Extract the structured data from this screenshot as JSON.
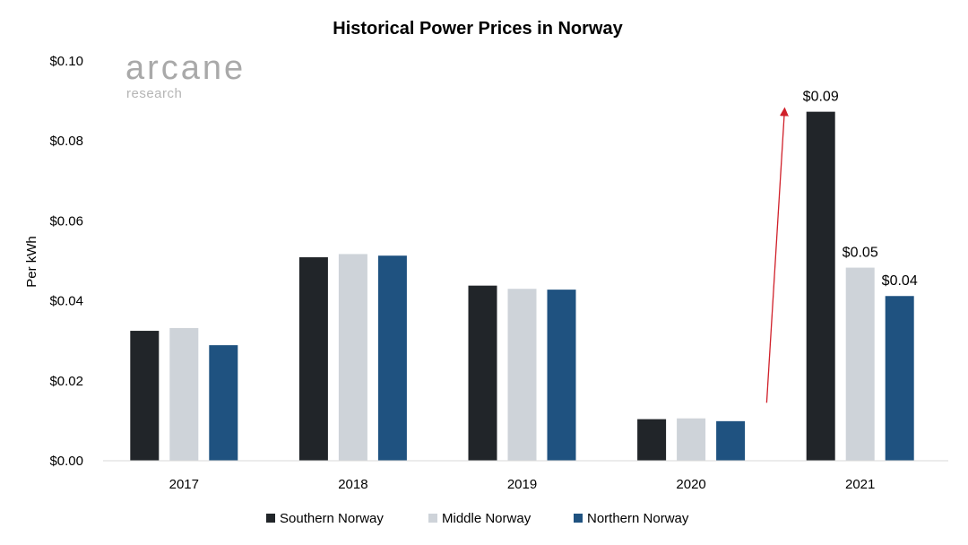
{
  "logo": {
    "name": "arcane",
    "tagline": "research"
  },
  "chart_data": {
    "type": "bar",
    "title": "Historical Power Prices in Norway",
    "xlabel": "",
    "ylabel": "Per kWh",
    "ylim": [
      0,
      0.1
    ],
    "yticks": [
      0.0,
      0.02,
      0.04,
      0.06,
      0.08,
      0.1
    ],
    "ytick_labels": [
      "$0.00",
      "$0.02",
      "$0.04",
      "$0.06",
      "$0.08",
      "$0.10"
    ],
    "categories": [
      "2017",
      "2018",
      "2019",
      "2020",
      "2021"
    ],
    "series": [
      {
        "name": "Southern Norway",
        "color": "#212529",
        "values": [
          0.0325,
          0.0509,
          0.0438,
          0.0104,
          0.0873
        ]
      },
      {
        "name": "Middle Norway",
        "color": "#ced3d9",
        "values": [
          0.0332,
          0.0517,
          0.043,
          0.0106,
          0.0483
        ]
      },
      {
        "name": "Northern Norway",
        "color": "#1f5280",
        "values": [
          0.0289,
          0.0513,
          0.0428,
          0.0099,
          0.0412
        ]
      }
    ],
    "data_labels": [
      {
        "series": 0,
        "category": "2021",
        "text": "$0.09"
      },
      {
        "series": 1,
        "category": "2021",
        "text": "$0.05"
      },
      {
        "series": 2,
        "category": "2021",
        "text": "$0.04"
      }
    ],
    "annotation": {
      "type": "arrow",
      "color": "#d0202a",
      "from": [
        "2020-2021",
        0.0145
      ],
      "to": [
        "2020-2021",
        0.088
      ]
    },
    "legend_position": "bottom-center",
    "grid": false
  }
}
